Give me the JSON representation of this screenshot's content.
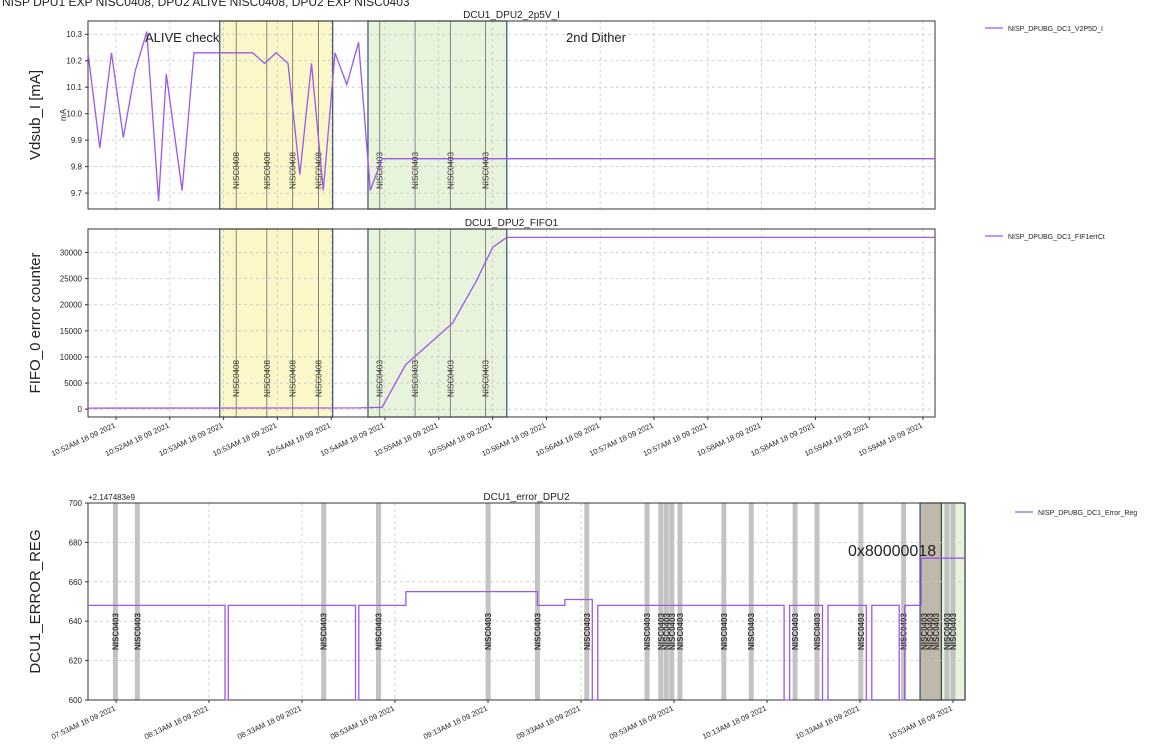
{
  "header_text": "NISP DPU1 EXP NISC0408, DPU2 ALIVE NISC0408, DPU2 EXP NISC0403",
  "colors": {
    "line": "#9b59e6",
    "yellow_fill": "#fbf7c8",
    "green_fill": "#e8f3dc",
    "box_edge": "#2f4f6f",
    "grid": "#c8c8c8",
    "marker": "#6b6b6b",
    "grey_band": "#b8b8b8",
    "olive_band": "#c9b98a"
  },
  "chart_data": [
    {
      "type": "line",
      "title": "DCU1_DPU2_2p5V_I",
      "ylabel": "Vdsub_I  [mA]",
      "yunit": "mA",
      "ylim": [
        9.64,
        10.35
      ],
      "yticks": [
        9.7,
        9.8,
        9.9,
        10.0,
        10.1,
        10.2,
        10.3
      ],
      "ytick_labels": [
        "9.7",
        "9.8",
        "9.9",
        "10.0",
        "10.1",
        "10.2",
        "10.3"
      ],
      "grid": true,
      "legend": {
        "position": "outside-top-right",
        "entries": [
          "NISP_DPUBG_DC1_V2P5D_I"
        ]
      },
      "annotations": [
        "ALIVE check",
        "2nd Dither"
      ],
      "series": [
        {
          "name": "NISP_DPUBG_DC1_V2P5D_I",
          "x": [
            0.0,
            0.5,
            1.0,
            1.5,
            2.0,
            2.5,
            3.0,
            3.33,
            4.0,
            4.5,
            5.0,
            5.5,
            6.0,
            6.5,
            7.0,
            7.5,
            8.0,
            8.5,
            9.0,
            9.5,
            10.0,
            10.5,
            11.0,
            11.5,
            12.0,
            12.5,
            13.0,
            13.5,
            14.0,
            14.5,
            15.0,
            15.5,
            16.0,
            16.5,
            17.0,
            17.5,
            18.0,
            18.5,
            19.0,
            19.5,
            20.0,
            20.5,
            21.0,
            21.5,
            22.0,
            22.5,
            23.0,
            23.5,
            24.0,
            24.5,
            25.0,
            25.5,
            26.0,
            26.5,
            27.0,
            27.5,
            28.0,
            28.5,
            29.0,
            29.5,
            30.0,
            30.5,
            31.0,
            31.5,
            32.0,
            32.5,
            33.0,
            33.5,
            34.0,
            34.5,
            35.0,
            35.5,
            36.0
          ],
          "values": [
            10.23,
            9.87,
            10.23,
            9.91,
            10.16,
            10.31,
            9.67,
            10.15,
            9.71,
            10.23,
            10.23,
            10.23,
            10.23,
            10.23,
            10.23,
            10.19,
            10.23,
            10.19,
            9.77,
            10.19,
            9.71,
            10.23,
            10.11,
            10.27,
            9.71,
            9.83,
            9.83,
            9.83,
            9.83,
            9.83,
            9.83,
            9.83,
            9.83,
            9.83,
            9.83,
            9.83,
            9.83,
            9.83,
            9.83,
            9.83,
            9.83,
            9.83,
            9.83,
            9.83,
            9.83,
            9.83,
            9.83,
            9.83,
            9.83,
            9.83,
            9.83,
            9.83,
            9.83,
            9.83,
            9.83,
            9.83,
            9.83,
            9.83,
            9.83,
            9.83,
            9.83,
            9.83,
            9.83,
            9.83,
            9.83,
            9.83,
            9.83,
            9.83,
            9.83,
            9.83,
            9.83,
            9.83,
            9.83
          ]
        }
      ],
      "shade_regions": [
        {
          "color": "yellow",
          "x": [
            5.6,
            10.4
          ]
        },
        {
          "color": "green",
          "x": [
            11.9,
            17.8
          ]
        }
      ],
      "markers": [
        {
          "x": 6.3,
          "label": "NISC0408"
        },
        {
          "x": 7.6,
          "label": "NISC0408"
        },
        {
          "x": 8.7,
          "label": "NISC0408"
        },
        {
          "x": 9.8,
          "label": "NISC0408"
        },
        {
          "x": 12.4,
          "label": "NISC0403"
        },
        {
          "x": 13.9,
          "label": "NISC0403"
        },
        {
          "x": 15.4,
          "label": "NISC0403"
        },
        {
          "x": 16.9,
          "label": "NISC0403"
        }
      ]
    },
    {
      "type": "line",
      "title": "DCU1_DPU2_FIFO1",
      "ylabel": "FIFO_0 error counter",
      "ylim": [
        -1500,
        34500
      ],
      "yticks": [
        0,
        5000,
        10000,
        15000,
        20000,
        25000,
        30000
      ],
      "ytick_labels": [
        "0",
        "5000",
        "10000",
        "15000",
        "20000",
        "25000",
        "30000"
      ],
      "grid": true,
      "legend": {
        "position": "outside-top-right",
        "entries": [
          "NISP_DPUBG_DC1_FIF1errCt"
        ]
      },
      "xtick_labels": [
        "10:52AM 18 09 2021",
        "10:52AM 18 09 2021",
        "10:53AM 18 09 2021",
        "10:53AM 18 09 2021",
        "10:54AM 18 09 2021",
        "10:54AM 18 09 2021",
        "10:55AM 18 09 2021",
        "10:55AM 18 09 2021",
        "10:56AM 18 09 2021",
        "10:56AM 18 09 2021",
        "10:57AM 18 09 2021",
        "10:57AM 18 09 2021",
        "10:58AM 18 09 2021",
        "10:58AM 18 09 2021",
        "10:59AM 18 09 2021",
        "10:59AM 18 09 2021"
      ],
      "series": [
        {
          "name": "NISP_DPUBG_DC1_FIF1errCt",
          "x": [
            0,
            11.5,
            12.5,
            13.5,
            14.5,
            15.5,
            16.5,
            17.2,
            17.8,
            21.5,
            25.0,
            28.5,
            32.0,
            36.0
          ],
          "values": [
            200,
            250,
            350,
            8500,
            12500,
            16500,
            24500,
            31000,
            32900,
            32900,
            32900,
            32900,
            32900,
            32900
          ]
        }
      ],
      "shade_regions": [
        {
          "color": "yellow",
          "x": [
            5.6,
            10.4
          ]
        },
        {
          "color": "green",
          "x": [
            11.9,
            17.8
          ]
        }
      ],
      "markers": [
        {
          "x": 6.3,
          "label": "NISC0408"
        },
        {
          "x": 7.6,
          "label": "NISC0408"
        },
        {
          "x": 8.7,
          "label": "NISC0408"
        },
        {
          "x": 9.8,
          "label": "NISC0408"
        },
        {
          "x": 12.4,
          "label": "NISC0403"
        },
        {
          "x": 13.9,
          "label": "NISC0403"
        },
        {
          "x": 15.4,
          "label": "NISC0403"
        },
        {
          "x": 16.9,
          "label": "NISC0403"
        }
      ]
    },
    {
      "type": "line",
      "title": "DCU1_error_DPU2",
      "offset_label": "+2.147483e9",
      "ylabel": "DCU1_ERROR_REG",
      "ylim": [
        600,
        700
      ],
      "yticks": [
        600,
        620,
        640,
        660,
        680,
        700
      ],
      "ytick_labels": [
        "600",
        "620",
        "640",
        "660",
        "680",
        "700"
      ],
      "grid": true,
      "legend": {
        "position": "outside-top-right",
        "entries": [
          "NISP_DPUBG_DC1_Error_Reg"
        ]
      },
      "annotations": [
        "0x80000018"
      ],
      "xtick_labels": [
        "07:53AM 18 09 2021",
        "08:13AM 18 09 2021",
        "08:33AM 18 09 2021",
        "08:53AM 18 09 2021",
        "09:13AM 18 09 2021",
        "09:33AM 18 09 2021",
        "09:53AM 18 09 2021",
        "10:13AM 18 09 2021",
        "10:33AM 18 09 2021",
        "10:53AM 18 09 2021"
      ],
      "series": [
        {
          "name": "NISP_DPUBG_DC1_Error_Reg",
          "x": [
            0,
            25.0,
            25.0,
            25.6,
            25.6,
            48.8,
            48.8,
            49.4,
            49.4,
            58.0,
            58.0,
            62.0,
            62.0,
            82.0,
            82.0,
            87.0,
            87.0,
            89.0,
            89.0,
            92.0,
            92.0,
            93.0,
            93.0,
            112.0,
            112.0,
            127.0,
            127.0,
            128.0,
            128.0,
            134.0,
            134.0,
            135.0,
            135.0,
            142.0,
            142.0,
            143.0,
            143.0,
            148.0,
            148.0,
            149.0,
            149.0,
            152.0,
            152.0,
            153.0,
            153.0,
            160.0
          ],
          "values": [
            648,
            648,
            600,
            600,
            648,
            648,
            600,
            600,
            648,
            648,
            655,
            655,
            655,
            655,
            648,
            648,
            651,
            651,
            651,
            651,
            600,
            600,
            648,
            648,
            648,
            648,
            600,
            600,
            648,
            648,
            600,
            600,
            648,
            648,
            600,
            600,
            648,
            648,
            600,
            600,
            648,
            648,
            672,
            672,
            672,
            672
          ]
        }
      ],
      "shade_regions": [
        {
          "color": "olive",
          "x": [
            151.8,
            155.7
          ]
        },
        {
          "color": "green",
          "x": [
            155.7,
            160.0
          ]
        }
      ],
      "bands": [
        5,
        9,
        43,
        53,
        73,
        82,
        91,
        102,
        104.5,
        105.5,
        106.5,
        108,
        116,
        121,
        129,
        133,
        141,
        148.8,
        152.5,
        153.6,
        154.7,
        156.7,
        157.8
      ],
      "markers": [
        {
          "x": 5,
          "label": "NISC0403"
        },
        {
          "x": 9,
          "label": "NISC0403"
        },
        {
          "x": 43,
          "label": "NISC0403"
        },
        {
          "x": 53,
          "label": "NISC0403"
        },
        {
          "x": 73,
          "label": "NISC0403"
        },
        {
          "x": 82,
          "label": "NISC0403"
        },
        {
          "x": 91,
          "label": "NISC0403"
        },
        {
          "x": 102,
          "label": "NISC0403"
        },
        {
          "x": 104.5,
          "label": "NISC0403"
        },
        {
          "x": 105.5,
          "label": "NISC0403"
        },
        {
          "x": 106.5,
          "label": "NISC0403"
        },
        {
          "x": 108,
          "label": "NISC0403"
        },
        {
          "x": 116,
          "label": "NISC0403"
        },
        {
          "x": 121,
          "label": "NISC0403"
        },
        {
          "x": 129,
          "label": "NISC0403"
        },
        {
          "x": 133,
          "label": "NISC0403"
        },
        {
          "x": 141,
          "label": "NISC0403"
        },
        {
          "x": 148.8,
          "label": "NISC0403"
        },
        {
          "x": 152.5,
          "label": "NISC0403"
        },
        {
          "x": 153.6,
          "label": "NISC0403"
        },
        {
          "x": 154.7,
          "label": "NISC0403"
        },
        {
          "x": 156.7,
          "label": "NISC0403"
        },
        {
          "x": 157.8,
          "label": "NISC0403"
        }
      ]
    }
  ]
}
